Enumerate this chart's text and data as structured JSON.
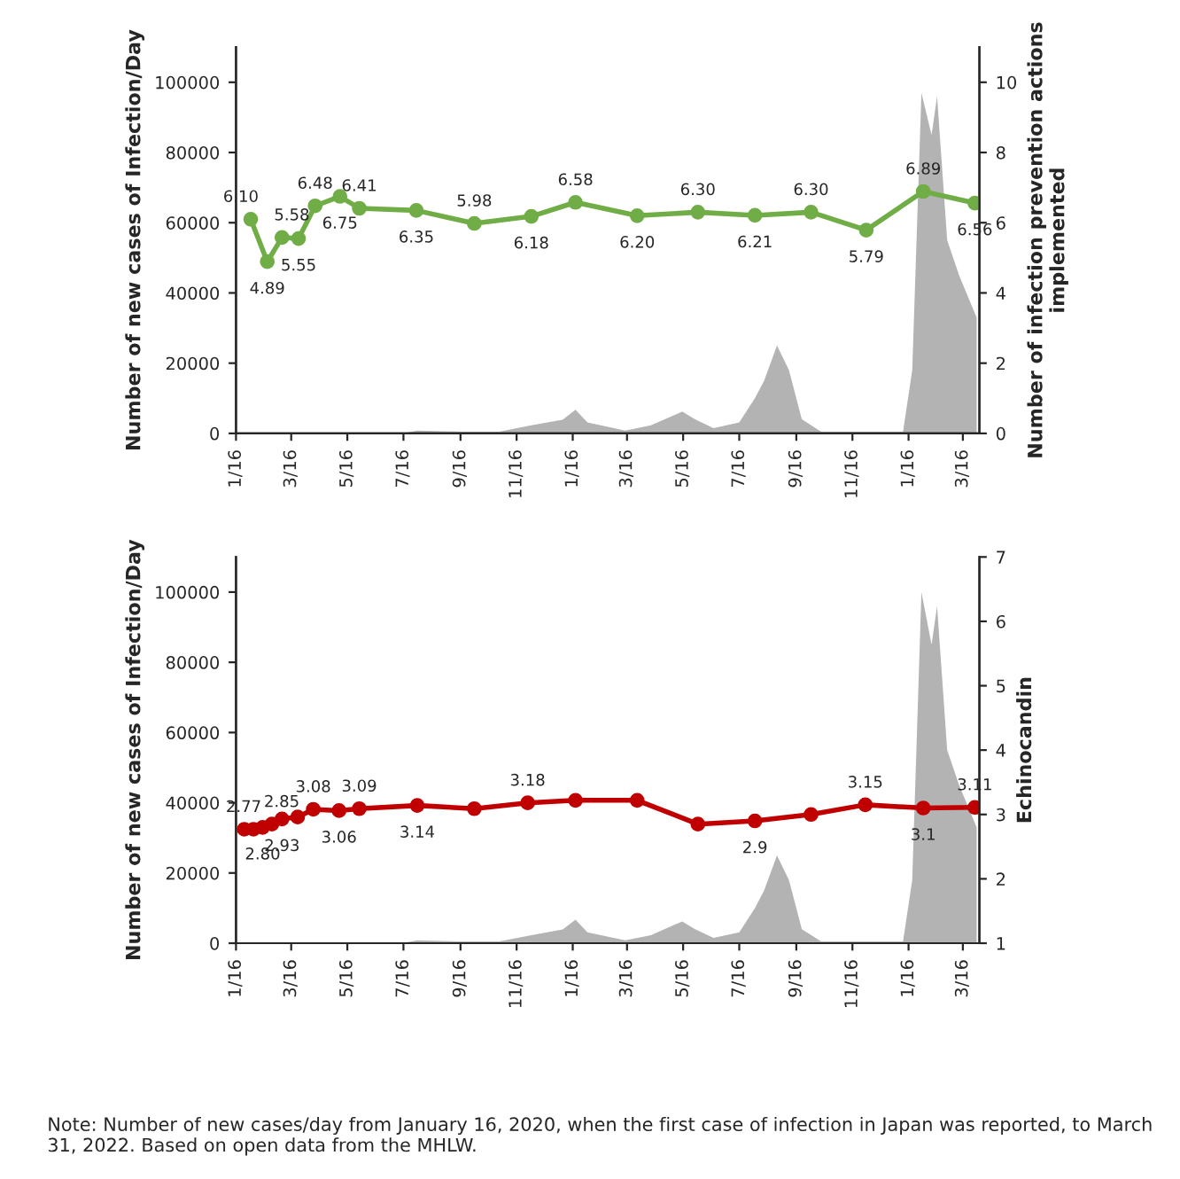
{
  "chart_data": [
    {
      "type": "area",
      "ylabel": "Number of new cases of Infection/Day",
      "y2label": "Number of infection prevention actions implemented",
      "xlim": [
        "2020-01-16",
        "2022-04-03"
      ],
      "ylim": [
        0,
        110000
      ],
      "yticks": [
        0,
        20000,
        40000,
        60000,
        80000,
        100000
      ],
      "y2lim": [
        0,
        11
      ],
      "y2ticks": [
        0,
        2,
        4,
        6,
        8,
        10
      ],
      "xticks": [
        {
          "value": "2020-01-16",
          "label": "1/16"
        },
        {
          "value": "2020-03-16",
          "label": "3/16"
        },
        {
          "value": "2020-05-16",
          "label": "5/16"
        },
        {
          "value": "2020-07-16",
          "label": "7/16"
        },
        {
          "value": "2020-09-16",
          "label": "9/16"
        },
        {
          "value": "2020-11-16",
          "label": "11/16"
        },
        {
          "value": "2021-01-16",
          "label": "1/16"
        },
        {
          "value": "2021-03-16",
          "label": "3/16"
        },
        {
          "value": "2021-05-16",
          "label": "5/16"
        },
        {
          "value": "2021-07-16",
          "label": "7/16"
        },
        {
          "value": "2021-09-16",
          "label": "9/16"
        },
        {
          "value": "2021-11-16",
          "label": "11/16"
        },
        {
          "value": "2022-01-16",
          "label": "1/16"
        },
        {
          "value": "2022-03-16",
          "label": "3/16"
        }
      ],
      "series": [
        {
          "type": "area",
          "color": "#b3b3b3",
          "x": [
            "2020-01-16",
            "2020-07-14",
            "2020-07-31",
            "2020-09-17",
            "2020-10-28",
            "2020-12-02",
            "2021-01-05",
            "2021-01-19",
            "2021-02-01",
            "2021-03-14",
            "2021-04-11",
            "2021-05-15",
            "2021-05-29",
            "2021-06-18",
            "2021-07-16",
            "2021-08-02",
            "2021-08-12",
            "2021-08-26",
            "2021-09-08",
            "2021-09-22",
            "2021-10-13",
            "2022-01-10",
            "2022-01-20",
            "2022-01-30",
            "2022-02-10",
            "2022-02-16",
            "2022-02-27",
            "2022-03-12",
            "2022-03-31"
          ],
          "values": [
            0,
            0,
            800,
            500,
            500,
            2300,
            3900,
            6700,
            3100,
            800,
            2300,
            6200,
            4000,
            1500,
            3100,
            10000,
            15000,
            25000,
            18000,
            4000,
            500,
            500,
            18000,
            97000,
            85000,
            96000,
            55000,
            45000,
            33000
          ]
        },
        {
          "type": "line",
          "axis": "y2",
          "color": "#70ad47",
          "marker": "circle",
          "x": [
            "2020-02-01",
            "2020-02-19",
            "2020-03-06",
            "2020-03-24",
            "2020-04-11",
            "2020-05-08",
            "2020-05-29",
            "2020-07-30",
            "2020-10-01",
            "2020-12-02",
            "2021-01-19",
            "2021-03-27",
            "2021-06-01",
            "2021-08-02",
            "2021-10-02",
            "2021-12-01",
            "2022-02-01",
            "2022-03-29"
          ],
          "values": [
            6.1,
            4.89,
            5.58,
            5.55,
            6.48,
            6.75,
            6.41,
            6.35,
            5.98,
            6.18,
            6.58,
            6.2,
            6.3,
            6.21,
            6.3,
            5.79,
            6.89,
            6.56
          ],
          "value_labels": [
            "6.10",
            "4.89",
            "5.58",
            "5.55",
            "6.48",
            "6.75",
            "6.41",
            "6.35",
            "5.98",
            "6.18",
            "6.58",
            "6.20",
            "6.30",
            "6.21",
            "6.30",
            "5.79",
            "6.89",
            "6.56"
          ]
        }
      ]
    },
    {
      "type": "area",
      "ylabel": "Number of new cases of Infection/Day",
      "y2label": "Echinocandin",
      "xlim": [
        "2020-01-16",
        "2022-04-03"
      ],
      "ylim": [
        0,
        110000
      ],
      "yticks": [
        0,
        20000,
        40000,
        60000,
        80000,
        100000
      ],
      "y2lim": [
        1,
        7
      ],
      "y2ticks": [
        1,
        2,
        3,
        4,
        5,
        6,
        7
      ],
      "xticks": [
        {
          "value": "2020-01-16",
          "label": "1/16"
        },
        {
          "value": "2020-03-16",
          "label": "3/16"
        },
        {
          "value": "2020-05-16",
          "label": "5/16"
        },
        {
          "value": "2020-07-16",
          "label": "7/16"
        },
        {
          "value": "2020-09-16",
          "label": "9/16"
        },
        {
          "value": "2020-11-16",
          "label": "11/16"
        },
        {
          "value": "2021-01-16",
          "label": "1/16"
        },
        {
          "value": "2021-03-16",
          "label": "3/16"
        },
        {
          "value": "2021-05-16",
          "label": "5/16"
        },
        {
          "value": "2021-07-16",
          "label": "7/16"
        },
        {
          "value": "2021-09-16",
          "label": "9/16"
        },
        {
          "value": "2021-11-16",
          "label": "11/16"
        },
        {
          "value": "2022-01-16",
          "label": "1/16"
        },
        {
          "value": "2022-03-16",
          "label": "3/16"
        }
      ],
      "annotations": [
        "Note: Number of new cases/day from January 16, 2020, when the first case of infection in Japan was reported, to March 31, 2022. Based on open data from the MHLW."
      ],
      "series": [
        {
          "type": "area",
          "color": "#b3b3b3",
          "x": [
            "2020-01-16",
            "2020-07-14",
            "2020-07-31",
            "2020-09-17",
            "2020-10-28",
            "2020-12-02",
            "2021-01-05",
            "2021-01-19",
            "2021-02-01",
            "2021-03-14",
            "2021-04-11",
            "2021-05-15",
            "2021-05-29",
            "2021-06-18",
            "2021-07-16",
            "2021-08-02",
            "2021-08-12",
            "2021-08-26",
            "2021-09-08",
            "2021-09-22",
            "2021-10-13",
            "2022-01-10",
            "2022-01-20",
            "2022-01-30",
            "2022-02-10",
            "2022-02-16",
            "2022-02-27",
            "2022-03-12",
            "2022-03-31"
          ],
          "values": [
            0,
            0,
            800,
            500,
            500,
            2300,
            3900,
            6700,
            3100,
            800,
            2300,
            6200,
            4000,
            1500,
            3100,
            10000,
            15000,
            25000,
            18000,
            4000,
            500,
            500,
            18000,
            100000,
            85000,
            96000,
            55000,
            45000,
            33000
          ]
        },
        {
          "type": "line",
          "axis": "y2",
          "color": "#c00000",
          "marker": "circle",
          "x": [
            "2020-01-25",
            "2020-02-04",
            "2020-02-14",
            "2020-02-24",
            "2020-03-06",
            "2020-03-23",
            "2020-04-09",
            "2020-05-07",
            "2020-05-29",
            "2020-07-31",
            "2020-10-01",
            "2020-11-28",
            "2021-01-19",
            "2021-03-27",
            "2021-06-01",
            "2021-08-02",
            "2021-10-02",
            "2021-11-30",
            "2022-02-01",
            "2022-03-29"
          ],
          "values": [
            2.77,
            2.77,
            2.8,
            2.85,
            2.93,
            2.96,
            3.08,
            3.06,
            3.09,
            3.14,
            3.09,
            3.18,
            3.22,
            3.22,
            2.85,
            2.9,
            3.0,
            3.15,
            3.1,
            3.11
          ],
          "value_labels": [
            null,
            "2.77",
            "2.80",
            "2.85",
            "2.93",
            null,
            "3.08",
            "3.06",
            "3.09",
            "3.14",
            null,
            "3.18",
            null,
            null,
            null,
            "2.9",
            null,
            "3.15",
            "3.1",
            "3.11"
          ]
        }
      ]
    }
  ]
}
